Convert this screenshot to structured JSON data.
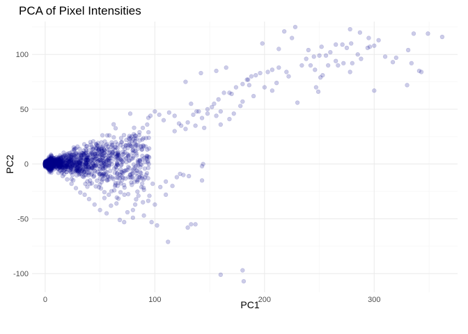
{
  "chart_data": {
    "type": "scatter",
    "title": "PCA of Pixel Intensities",
    "xlabel": "PC1",
    "ylabel": "PC2",
    "xlim": [
      -12,
      376
    ],
    "ylim": [
      -117,
      130
    ],
    "x_ticks": [
      0,
      100,
      200,
      300
    ],
    "y_ticks": [
      -100,
      -50,
      0,
      50,
      100
    ],
    "grid": true,
    "legend": "none",
    "point_color": "#00008B",
    "point_opacity": 0.2,
    "outlier_points": [
      [
        228,
        125
      ],
      [
        218,
        121
      ],
      [
        278,
        123
      ],
      [
        287,
        120
      ],
      [
        295,
        115
      ],
      [
        304,
        113
      ],
      [
        336,
        119
      ],
      [
        349,
        119
      ],
      [
        362,
        116
      ],
      [
        198,
        110
      ],
      [
        225,
        115
      ],
      [
        213,
        105
      ],
      [
        271,
        109
      ],
      [
        279,
        110
      ],
      [
        296,
        107
      ],
      [
        252,
        107
      ],
      [
        240,
        104
      ],
      [
        245,
        98
      ],
      [
        260,
        102
      ],
      [
        265,
        109
      ],
      [
        275,
        106
      ],
      [
        285,
        100
      ],
      [
        294,
        106
      ],
      [
        288,
        96
      ],
      [
        300,
        108
      ],
      [
        310,
        98
      ],
      [
        320,
        97
      ],
      [
        331,
        104
      ],
      [
        334,
        92
      ],
      [
        341,
        85
      ],
      [
        343,
        84
      ],
      [
        330,
        72
      ],
      [
        317,
        93
      ],
      [
        278,
        84
      ],
      [
        265,
        94
      ],
      [
        256,
        99
      ],
      [
        250,
        99
      ],
      [
        242,
        90
      ],
      [
        238,
        96
      ],
      [
        234,
        90
      ],
      [
        220,
        84
      ],
      [
        213,
        88
      ],
      [
        207,
        86
      ],
      [
        203,
        84
      ],
      [
        196,
        83
      ],
      [
        192,
        81
      ],
      [
        188,
        80
      ],
      [
        184,
        77
      ],
      [
        180,
        73
      ],
      [
        174,
        70
      ],
      [
        168,
        65
      ],
      [
        163,
        65
      ],
      [
        158,
        59
      ],
      [
        154,
        55
      ],
      [
        148,
        50
      ],
      [
        140,
        48
      ],
      [
        135,
        45
      ],
      [
        130,
        38
      ],
      [
        124,
        35
      ],
      [
        118,
        30
      ],
      [
        246,
        86
      ],
      [
        251,
        79
      ],
      [
        253,
        81
      ],
      [
        247,
        70
      ],
      [
        249,
        66
      ],
      [
        258,
        90
      ],
      [
        267,
        90
      ],
      [
        272,
        92
      ],
      [
        280,
        92
      ],
      [
        300,
        67
      ],
      [
        230,
        56
      ],
      [
        222,
        80
      ],
      [
        211,
        74
      ],
      [
        186,
        72
      ],
      [
        180,
        57
      ],
      [
        178,
        53
      ],
      [
        172,
        46
      ],
      [
        168,
        41
      ],
      [
        160,
        48
      ],
      [
        156,
        44
      ],
      [
        148,
        46
      ],
      [
        143,
        42
      ],
      [
        138,
        48
      ],
      [
        133,
        55
      ],
      [
        128,
        75
      ],
      [
        142,
        83
      ],
      [
        156,
        85
      ],
      [
        165,
        88
      ],
      [
        185,
        77
      ],
      [
        200,
        70
      ],
      [
        170,
        64
      ],
      [
        190,
        62
      ],
      [
        207,
        67
      ],
      [
        160,
        36
      ],
      [
        152,
        52
      ],
      [
        145,
        33
      ],
      [
        137,
        35
      ],
      [
        128,
        32
      ],
      [
        122,
        37
      ],
      [
        118,
        44
      ],
      [
        113,
        47
      ],
      [
        108,
        40
      ],
      [
        104,
        45
      ],
      [
        100,
        48
      ],
      [
        96,
        44
      ],
      [
        93,
        36
      ],
      [
        89,
        33
      ],
      [
        86,
        29
      ],
      [
        82,
        26
      ],
      [
        78,
        24
      ],
      [
        74,
        22
      ],
      [
        70,
        20
      ],
      [
        66,
        18
      ],
      [
        62,
        14
      ],
      [
        58,
        13
      ],
      [
        54,
        10
      ],
      [
        160,
        -101
      ],
      [
        180,
        -97
      ],
      [
        181,
        -107
      ],
      [
        112,
        -71
      ],
      [
        130,
        -58
      ],
      [
        133,
        -55
      ],
      [
        137,
        -55
      ],
      [
        102,
        -56
      ],
      [
        97,
        -53
      ],
      [
        80,
        -49
      ],
      [
        68,
        -51
      ],
      [
        72,
        -53
      ],
      [
        90,
        -47
      ],
      [
        80,
        -42
      ],
      [
        75,
        -44
      ],
      [
        60,
        -38
      ],
      [
        65,
        -36
      ],
      [
        56,
        -45
      ],
      [
        50,
        -42
      ],
      [
        45,
        -37
      ],
      [
        40,
        -32
      ],
      [
        36,
        -28
      ],
      [
        32,
        -26
      ],
      [
        28,
        -22
      ],
      [
        24,
        -18
      ],
      [
        20,
        -14
      ],
      [
        16,
        -11
      ],
      [
        12,
        -8
      ],
      [
        8,
        -5
      ],
      [
        4,
        -2
      ],
      [
        100,
        -37
      ],
      [
        95,
        -29
      ],
      [
        110,
        -28
      ],
      [
        116,
        -20
      ],
      [
        123,
        -9
      ],
      [
        126,
        -10
      ],
      [
        131,
        -11
      ],
      [
        143,
        -15
      ],
      [
        144,
        0
      ],
      [
        143,
        -2
      ],
      [
        120,
        -12
      ],
      [
        110,
        -16
      ],
      [
        105,
        -21
      ],
      [
        98,
        -18
      ],
      [
        92,
        -10
      ],
      [
        88,
        -13
      ],
      [
        84,
        -16
      ],
      [
        79,
        -19
      ],
      [
        76,
        -12
      ],
      [
        70,
        -15
      ],
      [
        66,
        -20
      ],
      [
        63,
        -24
      ],
      [
        58,
        -28
      ],
      [
        54,
        -31
      ]
    ]
  }
}
